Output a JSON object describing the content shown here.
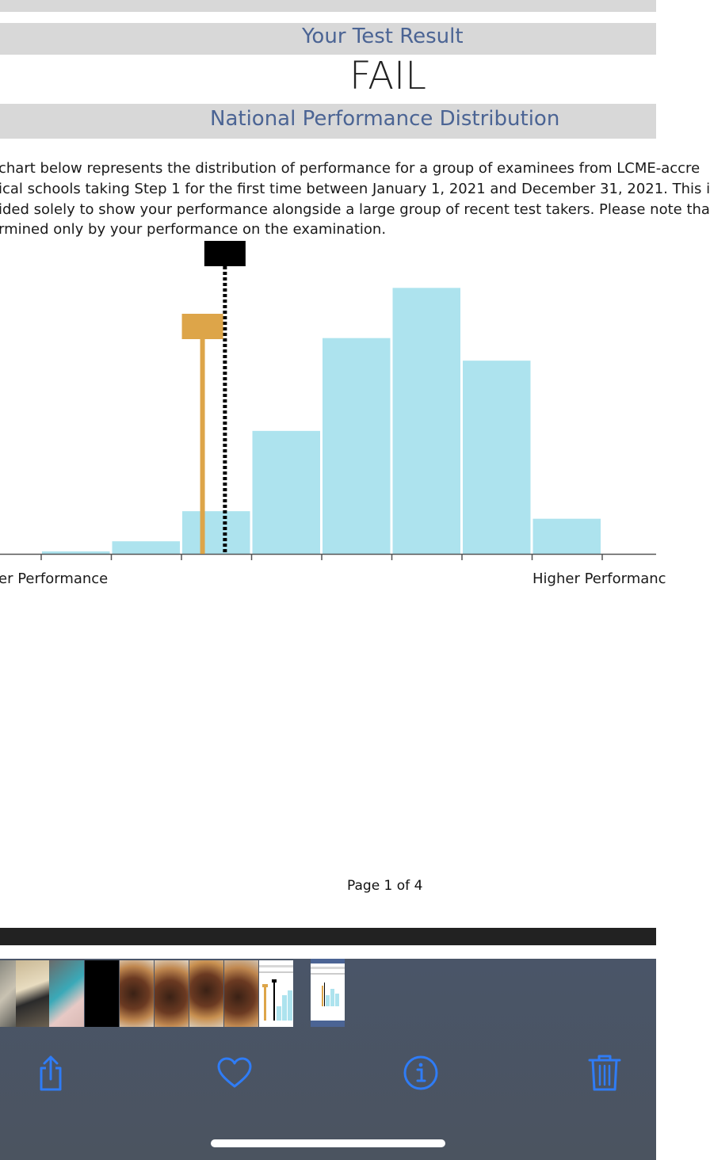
{
  "header": {
    "result_title": "Your Test Result",
    "result_value": "FAIL",
    "distribution_title": "National Performance Distribution"
  },
  "description": {
    "lines": [
      "chart below represents the distribution of performance for a group of examinees from LCME-accre",
      "ical schools taking Step 1 for the first time between January 1, 2021 and December 31, 2021. This i",
      "ided solely to show your performance alongside a large group of recent test takers. Please note tha",
      "rmined only by your performance on the examination."
    ]
  },
  "chart_data": {
    "type": "bar",
    "title": "",
    "xlabel_left": "er Performance",
    "xlabel_right": "Higher Performanc",
    "values": [
      1,
      5,
      17,
      49,
      86,
      106,
      77,
      14
    ],
    "ylim": [
      0,
      120
    ],
    "bar_color": "#ade3ee",
    "markers": [
      {
        "name": "passing standard",
        "style": "dashed",
        "color": "#000000",
        "bin_position": 2.62
      },
      {
        "name": "your score",
        "style": "solid",
        "color": "#dda549",
        "bin_position": 2.3
      }
    ]
  },
  "footer": {
    "page_label": "Page 1 of 4"
  },
  "thumbnails": {
    "count": 10
  },
  "toolbar": {
    "share_icon": "share-icon",
    "favorite_icon": "heart-icon",
    "info_icon": "info-icon",
    "delete_icon": "trash-icon",
    "accent_color": "#2f7cf6"
  }
}
